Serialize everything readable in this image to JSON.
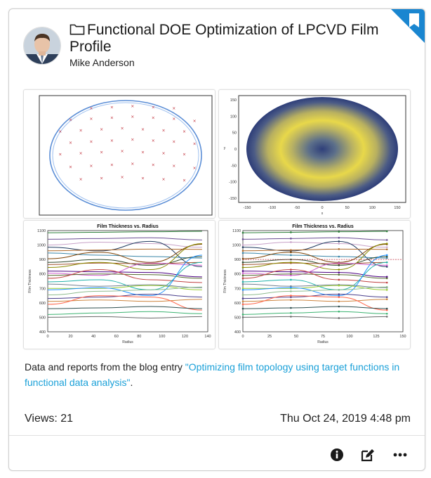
{
  "card": {
    "title": "Functional DOE Optimization of LPCVD Film Profile",
    "author": "Mike Anderson",
    "description_prefix": "Data and reports from the blog entry ",
    "description_link": "\"Optimizing film topology using target functions in functional data analysis\"",
    "description_suffix": ".",
    "views_label": "Views: 21",
    "date": "Thu Oct 24, 2019 4:48 pm"
  },
  "icons": {
    "bookmark": "bookmark-ribbon-icon",
    "folder": "folder-outline-icon",
    "info": "info-circle-icon",
    "edit": "edit-pencil-icon",
    "more": "more-ellipsis-icon"
  },
  "colors": {
    "accent": "#1aa0d8",
    "bookmark": "#1a86d0"
  },
  "chart_data": [
    {
      "type": "scatter",
      "x": [
        -50,
        -20,
        10,
        40,
        70,
        -80,
        -50,
        -20,
        10,
        40,
        70,
        100,
        -95,
        -65,
        -35,
        -5,
        25,
        55,
        85,
        -80,
        -50,
        -20,
        10,
        40,
        70,
        100,
        -95,
        -65,
        -35,
        -5,
        25,
        55,
        85,
        -80,
        -50,
        -20,
        10,
        40,
        70,
        100,
        -65,
        -35,
        -5,
        25,
        55,
        85
      ],
      "y": [
        90,
        92,
        94,
        92,
        90,
        68,
        70,
        72,
        74,
        72,
        70,
        66,
        46,
        48,
        50,
        52,
        50,
        48,
        46,
        24,
        26,
        28,
        30,
        28,
        26,
        22,
        2,
        4,
        6,
        8,
        6,
        4,
        2,
        -22,
        -20,
        -18,
        -16,
        -18,
        -20,
        -24,
        -46,
        -44,
        -42,
        -44,
        -46,
        -48
      ]
    },
    {
      "type": "heatmap",
      "xticks": [
        "-150",
        "-100",
        "-50",
        "0",
        "50",
        "100",
        "150"
      ],
      "yticks": [
        "150",
        "100",
        "50",
        "0",
        "-50",
        "-100",
        "-150"
      ],
      "xlabel": "x",
      "ylabel": "y"
    },
    {
      "type": "line",
      "title": "Film Thickness vs. Radius",
      "xlabel": "Radius",
      "ylabel": "Film Thickness",
      "xticks": [
        "0",
        "20",
        "40",
        "60",
        "80",
        "100",
        "120",
        "140"
      ],
      "yticks": [
        "1100",
        "1000",
        "900",
        "800",
        "700",
        "600",
        "500",
        "400"
      ],
      "xlim": [
        0,
        140
      ],
      "ylim": [
        400,
        1100
      ],
      "x": [
        0,
        45,
        90,
        135
      ],
      "series": [
        {
          "values": [
            1085,
            1088,
            1092,
            1095
          ]
        },
        {
          "values": [
            1040,
            1045,
            1050,
            1035
          ]
        },
        {
          "values": [
            1000,
            1020,
            1010,
            985
          ]
        },
        {
          "values": [
            985,
            960,
            1025,
            850
          ]
        },
        {
          "values": [
            960,
            965,
            972,
            970
          ]
        },
        {
          "values": [
            945,
            930,
            920,
            910
          ]
        },
        {
          "values": [
            905,
            950,
            880,
            1005
          ]
        },
        {
          "values": [
            880,
            900,
            860,
            920
          ]
        },
        {
          "values": [
            865,
            875,
            870,
            880
          ]
        },
        {
          "values": [
            845,
            880,
            830,
            1010
          ]
        },
        {
          "values": [
            820,
            815,
            810,
            780
          ]
        },
        {
          "values": [
            805,
            790,
            875,
            860
          ]
        },
        {
          "values": [
            790,
            800,
            795,
            770
          ]
        },
        {
          "values": [
            770,
            830,
            760,
            740
          ]
        },
        {
          "values": [
            745,
            760,
            690,
            880
          ]
        },
        {
          "values": [
            730,
            715,
            725,
            705
          ]
        },
        {
          "values": [
            700,
            700,
            720,
            690
          ]
        },
        {
          "values": [
            690,
            705,
            650,
            930
          ]
        },
        {
          "values": [
            655,
            680,
            690,
            710
          ]
        },
        {
          "values": [
            630,
            640,
            660,
            640
          ]
        },
        {
          "values": [
            610,
            620,
            610,
            625
          ]
        },
        {
          "values": [
            590,
            650,
            640,
            550
          ]
        },
        {
          "values": [
            560,
            565,
            575,
            560
          ]
        },
        {
          "values": [
            520,
            530,
            540,
            525
          ]
        },
        {
          "values": [
            500,
            505,
            495,
            505
          ]
        }
      ]
    },
    {
      "type": "line",
      "title": "Film Thickness vs. Radius",
      "xlabel": "Radius",
      "ylabel": "Film Thickness",
      "xticks": [
        "0",
        "25",
        "50",
        "75",
        "100",
        "125",
        "150"
      ],
      "yticks": [
        "1100",
        "1000",
        "900",
        "800",
        "700",
        "600",
        "500",
        "400"
      ],
      "xlim": [
        0,
        150
      ],
      "ylim": [
        400,
        1100
      ],
      "x": [
        0,
        45,
        90,
        135
      ],
      "target": 900,
      "series_ref": "same as chart 3"
    }
  ]
}
